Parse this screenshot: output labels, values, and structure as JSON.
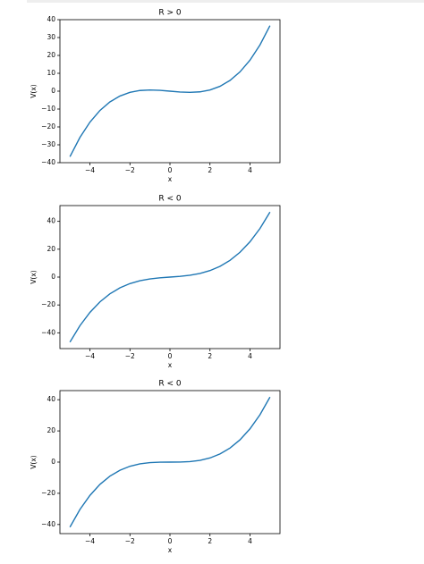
{
  "chart_data": [
    {
      "type": "line",
      "title": "R > 0",
      "x_label": "x",
      "y_label": "V(x)",
      "color": "#1f77b4",
      "x": [
        -5,
        -4.5,
        -4,
        -3.5,
        -3,
        -2.5,
        -2,
        -1.5,
        -1,
        -0.5,
        0,
        0.5,
        1,
        1.5,
        2,
        2.5,
        3,
        3.5,
        4,
        4.5,
        5
      ],
      "values": [
        -36.67,
        -25.88,
        -17.33,
        -10.79,
        -6,
        -2.71,
        -0.67,
        0.38,
        0.67,
        0.46,
        0,
        -0.46,
        -0.67,
        -0.38,
        0.67,
        2.71,
        6,
        10.79,
        17.33,
        25.88,
        36.67
      ],
      "xlim": [
        -5.5,
        5.5
      ],
      "ylim": [
        -40,
        40
      ],
      "xticks": [
        {
          "value": -4,
          "label": "−4"
        },
        {
          "value": -2,
          "label": "−2"
        },
        0,
        2,
        4
      ],
      "yticks": [
        {
          "value": -40,
          "label": "−40"
        },
        {
          "value": -30,
          "label": "−30"
        },
        {
          "value": -20,
          "label": "−20"
        },
        {
          "value": -10,
          "label": "−10"
        },
        0,
        10,
        20,
        30,
        40
      ]
    },
    {
      "type": "line",
      "title": "R < 0",
      "x_label": "x",
      "y_label": "V(x)",
      "color": "#1f77b4",
      "x": [
        -5,
        -4.5,
        -4,
        -3.5,
        -3,
        -2.5,
        -2,
        -1.5,
        -1,
        -0.5,
        0,
        0.5,
        1,
        1.5,
        2,
        2.5,
        3,
        3.5,
        4,
        4.5,
        5
      ],
      "values": [
        -46.67,
        -34.88,
        -25.33,
        -17.79,
        -12,
        -7.71,
        -4.67,
        -2.63,
        -1.33,
        -0.54,
        0,
        0.54,
        1.33,
        2.63,
        4.67,
        7.71,
        12,
        17.79,
        25.33,
        34.88,
        46.67
      ],
      "xlim": [
        -5.5,
        5.5
      ],
      "ylim": [
        -51.33,
        51.33
      ],
      "xticks": [
        {
          "value": -4,
          "label": "−4"
        },
        {
          "value": -2,
          "label": "−2"
        },
        0,
        2,
        4
      ],
      "yticks": [
        {
          "value": -40,
          "label": "−40"
        },
        {
          "value": -20,
          "label": "−20"
        },
        0,
        20,
        40
      ]
    },
    {
      "type": "line",
      "title": "R < 0",
      "x_label": "x",
      "y_label": "V(x)",
      "color": "#1f77b4",
      "x": [
        -5,
        -4.5,
        -4,
        -3.5,
        -3,
        -2.5,
        -2,
        -1.5,
        -1,
        -0.5,
        0,
        0.5,
        1,
        1.5,
        2,
        2.5,
        3,
        3.5,
        4,
        4.5,
        5
      ],
      "values": [
        -41.67,
        -30.38,
        -21.33,
        -14.29,
        -9,
        -5.21,
        -2.67,
        -1.13,
        -0.33,
        -0.04,
        0,
        0.04,
        0.33,
        1.13,
        2.67,
        5.21,
        9,
        14.29,
        21.33,
        30.38,
        41.67
      ],
      "xlim": [
        -5.5,
        5.5
      ],
      "ylim": [
        -45.83,
        45.83
      ],
      "xticks": [
        {
          "value": -4,
          "label": "−4"
        },
        {
          "value": -2,
          "label": "−2"
        },
        0,
        2,
        4
      ],
      "yticks": [
        {
          "value": -40,
          "label": "−40"
        },
        {
          "value": -20,
          "label": "−20"
        },
        0,
        20,
        40
      ]
    }
  ]
}
